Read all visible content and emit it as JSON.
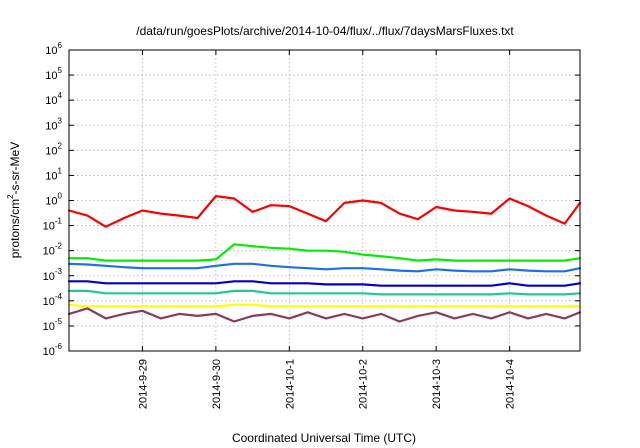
{
  "chart_data": {
    "type": "line",
    "title": "/data/run/goesPlots/archive/2014-10-04/flux/../flux/7daysMarsFluxes.txt",
    "xlabel": "Coordinated Universal Time (UTC)",
    "ylabel": "protons/cm2-s-sr-MeV",
    "ylabel_parts": {
      "a": "protons/cm",
      "sup": "2",
      "b": "-s-sr-MeV"
    },
    "y_scale": "log",
    "ylim": [
      1e-06,
      1000000.0
    ],
    "y_ticks": [
      {
        "base": "10",
        "exp": "-6"
      },
      {
        "base": "10",
        "exp": "-5"
      },
      {
        "base": "10",
        "exp": "-4"
      },
      {
        "base": "10",
        "exp": "-3"
      },
      {
        "base": "10",
        "exp": "-2"
      },
      {
        "base": "10",
        "exp": "-1"
      },
      {
        "base": "10",
        "exp": "0"
      },
      {
        "base": "10",
        "exp": "1"
      },
      {
        "base": "10",
        "exp": "2"
      },
      {
        "base": "10",
        "exp": "3"
      },
      {
        "base": "10",
        "exp": "4"
      },
      {
        "base": "10",
        "exp": "5"
      },
      {
        "base": "10",
        "exp": "6"
      }
    ],
    "xlim": [
      "2014-09-28T00:00",
      "2014-10-04T23:00"
    ],
    "x_ticks": [
      "2014-9-29",
      "2014-9-30",
      "2014-10-1",
      "2014-10-2",
      "2014-10-3",
      "2014-10-4"
    ],
    "grid": true,
    "legend": "none",
    "x": [
      "09-28 00:00",
      "09-28 06:00",
      "09-28 12:00",
      "09-28 18:00",
      "09-29 00:00",
      "09-29 06:00",
      "09-29 12:00",
      "09-29 18:00",
      "09-30 00:00",
      "09-30 06:00",
      "09-30 12:00",
      "09-30 18:00",
      "10-01 00:00",
      "10-01 06:00",
      "10-01 12:00",
      "10-01 18:00",
      "10-02 00:00",
      "10-02 06:00",
      "10-02 12:00",
      "10-02 18:00",
      "10-03 00:00",
      "10-03 06:00",
      "10-03 12:00",
      "10-03 18:00",
      "10-04 00:00",
      "10-04 06:00",
      "10-04 12:00",
      "10-04 18:00",
      "10-04 23:00"
    ],
    "series": [
      {
        "color": "#ff0000",
        "values": [
          0.4,
          0.25,
          0.09,
          0.2,
          0.4,
          0.3,
          0.25,
          0.2,
          1.5,
          1.2,
          0.35,
          0.65,
          0.6,
          0.3,
          0.15,
          0.8,
          1.0,
          0.8,
          0.3,
          0.18,
          0.55,
          0.4,
          0.35,
          0.3,
          1.2,
          0.6,
          0.25,
          0.12,
          0.8
        ]
      },
      {
        "color": "#00ee00",
        "values": [
          0.005,
          0.005,
          0.004,
          0.004,
          0.004,
          0.004,
          0.004,
          0.004,
          0.0045,
          0.018,
          0.015,
          0.013,
          0.012,
          0.01,
          0.01,
          0.009,
          0.007,
          0.006,
          0.005,
          0.004,
          0.0045,
          0.004,
          0.004,
          0.004,
          0.004,
          0.004,
          0.004,
          0.004,
          0.005
        ]
      },
      {
        "color": "#1e6ff0",
        "values": [
          0.003,
          0.0028,
          0.0025,
          0.0022,
          0.002,
          0.002,
          0.002,
          0.002,
          0.0025,
          0.003,
          0.003,
          0.0025,
          0.0022,
          0.002,
          0.0018,
          0.002,
          0.002,
          0.0018,
          0.0016,
          0.0015,
          0.0018,
          0.0016,
          0.0015,
          0.0015,
          0.0018,
          0.0016,
          0.0015,
          0.0015,
          0.002
        ]
      },
      {
        "color": "#0000cc",
        "values": [
          0.0006,
          0.0006,
          0.0005,
          0.0005,
          0.0005,
          0.0005,
          0.0005,
          0.0005,
          0.0005,
          0.0006,
          0.0006,
          0.0005,
          0.0005,
          0.0005,
          0.00045,
          0.00045,
          0.00045,
          0.0004,
          0.0004,
          0.0004,
          0.0004,
          0.0004,
          0.0004,
          0.0004,
          0.0005,
          0.0004,
          0.0004,
          0.0004,
          0.0005
        ]
      },
      {
        "color": "#22c898",
        "values": [
          0.00025,
          0.00025,
          0.0002,
          0.0002,
          0.0002,
          0.0002,
          0.0002,
          0.0002,
          0.0002,
          0.00025,
          0.00025,
          0.0002,
          0.0002,
          0.0002,
          0.0002,
          0.0002,
          0.0002,
          0.00018,
          0.00018,
          0.00018,
          0.00018,
          0.00018,
          0.00018,
          0.00018,
          0.0002,
          0.00018,
          0.00018,
          0.00018,
          0.0002
        ]
      },
      {
        "color": "#ffff00",
        "values": [
          7e-05,
          6e-05,
          6e-05,
          6e-05,
          6e-05,
          6e-05,
          6e-05,
          6e-05,
          6e-05,
          7e-05,
          7e-05,
          6e-05,
          6e-05,
          6e-05,
          6e-05,
          6e-05,
          6e-05,
          6e-05,
          6e-05,
          6e-05,
          6e-05,
          6e-05,
          6e-05,
          6e-05,
          6e-05,
          6e-05,
          6e-05,
          6e-05,
          6e-05
        ]
      },
      {
        "color": "#8b3a62",
        "values": [
          3e-05,
          5e-05,
          2e-05,
          3e-05,
          4e-05,
          2e-05,
          3e-05,
          2.5e-05,
          3e-05,
          1.5e-05,
          2.5e-05,
          3e-05,
          2e-05,
          3.5e-05,
          2e-05,
          3e-05,
          2e-05,
          3e-05,
          1.5e-05,
          2.5e-05,
          3.5e-05,
          2e-05,
          3e-05,
          2e-05,
          3.5e-05,
          2e-05,
          3e-05,
          2e-05,
          3.5e-05
        ]
      }
    ]
  }
}
